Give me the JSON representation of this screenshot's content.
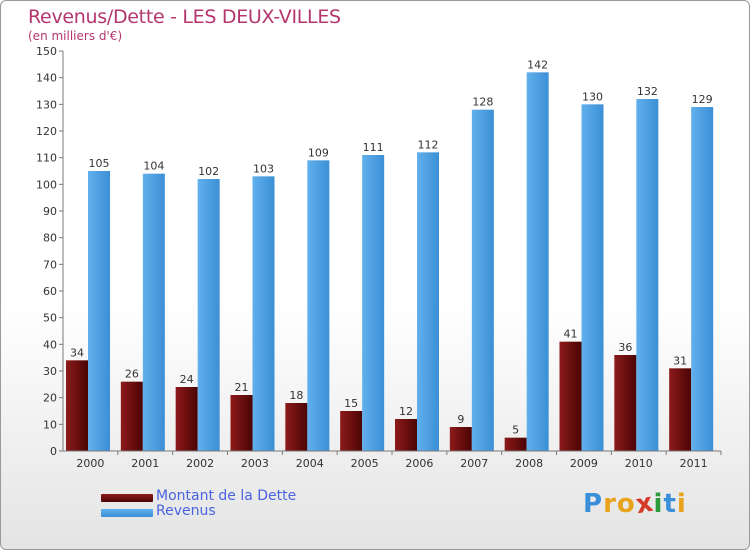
{
  "header": {
    "title": "Revenus/Dette - LES DEUX-VILLES",
    "subtitle": "(en milliers d'€)"
  },
  "colors": {
    "title": "#b4366e",
    "dette": "#7a0c0c",
    "revenus": "#4d9fe0",
    "legend_text": "#4a64e0",
    "axis_text": "#333333"
  },
  "chart_data": {
    "type": "bar",
    "title": "Revenus/Dette - LES DEUX-VILLES",
    "subtitle": "(en milliers d'€)",
    "categories": [
      "2000",
      "2001",
      "2002",
      "2003",
      "2004",
      "2005",
      "2006",
      "2007",
      "2008",
      "2009",
      "2010",
      "2011"
    ],
    "series": [
      {
        "name": "Montant de la Dette",
        "values": [
          34,
          26,
          24,
          21,
          18,
          15,
          12,
          9,
          5,
          41,
          36,
          31
        ]
      },
      {
        "name": "Revenus",
        "values": [
          105,
          104,
          102,
          103,
          109,
          111,
          112,
          128,
          142,
          130,
          132,
          129
        ]
      }
    ],
    "ylim": [
      0,
      150
    ],
    "yticks": [
      0,
      10,
      20,
      30,
      40,
      50,
      60,
      70,
      80,
      90,
      100,
      110,
      120,
      130,
      140,
      150
    ],
    "grid": false,
    "legend_position": "bottom-left",
    "data_labels": true
  },
  "legend": {
    "items": [
      {
        "label": "Montant de la Dette"
      },
      {
        "label": "Revenus"
      }
    ]
  },
  "logo": {
    "letters": [
      "P",
      "r",
      "o",
      "x",
      "i",
      "t",
      "i"
    ],
    "colors": [
      "#3a8fd8",
      "#e8a21c",
      "#e8a21c",
      "#d43a2a",
      "#2a9a3a",
      "#3a8fd8",
      "#e8a21c"
    ]
  }
}
